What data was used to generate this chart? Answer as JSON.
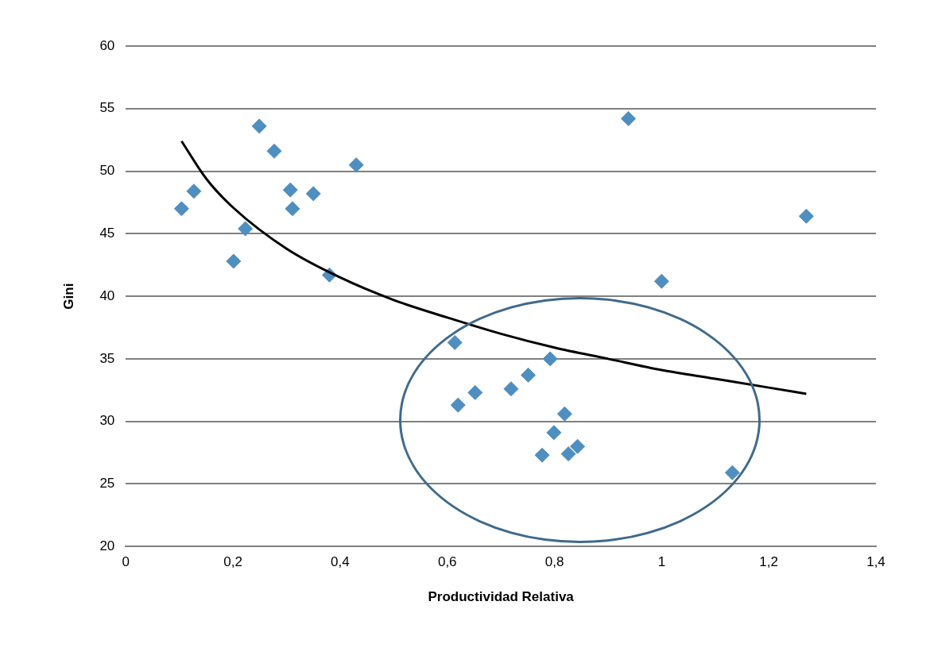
{
  "chart_data": {
    "type": "scatter",
    "xlabel": "Productividad Relativa",
    "ylabel": "Gini",
    "xlim": [
      0,
      1.4
    ],
    "xticks": [
      0,
      {
        "value": 0.2,
        "label": "0,2"
      },
      {
        "value": 0.4,
        "label": "0,4"
      },
      {
        "value": 0.6,
        "label": "0,6"
      },
      {
        "value": 0.8,
        "label": "0,8"
      },
      1,
      {
        "value": 1.2,
        "label": "1,2"
      },
      {
        "value": 1.4,
        "label": "1,4"
      }
    ],
    "ylim": [
      20,
      60
    ],
    "yticks": [
      20,
      25,
      30,
      35,
      40,
      45,
      50,
      55,
      60
    ],
    "grid": "y",
    "legend": false,
    "marker": "diamond",
    "series": [
      {
        "type": "scatter",
        "color": "#4f8fbf",
        "x": [
          0.104,
          0.127,
          0.201,
          0.223,
          0.249,
          0.277,
          0.307,
          0.311,
          0.35,
          0.38,
          0.43,
          0.614,
          0.62,
          0.652,
          0.719,
          0.751,
          0.792,
          0.777,
          0.799,
          0.819,
          0.826,
          0.843,
          0.938,
          1.0,
          1.132,
          1.27
        ],
        "values": [
          47.0,
          48.4,
          42.8,
          45.4,
          53.6,
          51.6,
          48.5,
          47.0,
          48.2,
          41.7,
          50.5,
          36.3,
          31.3,
          32.3,
          32.6,
          33.7,
          35.0,
          27.3,
          29.1,
          30.6,
          27.4,
          28.0,
          54.2,
          41.2,
          25.9,
          46.4
        ]
      },
      {
        "type": "line",
        "color": "#000000",
        "marker": "none",
        "x": [
          0.104,
          0.15,
          0.2,
          0.3,
          0.4,
          0.5,
          0.6,
          0.7,
          0.8,
          0.9,
          1.0,
          1.1,
          1.2,
          1.27
        ],
        "values": [
          52.4,
          49.4,
          47.1,
          43.8,
          41.5,
          39.7,
          38.3,
          37.0,
          35.9,
          35.0,
          34.1,
          33.4,
          32.7,
          32.2
        ]
      }
    ]
  }
}
